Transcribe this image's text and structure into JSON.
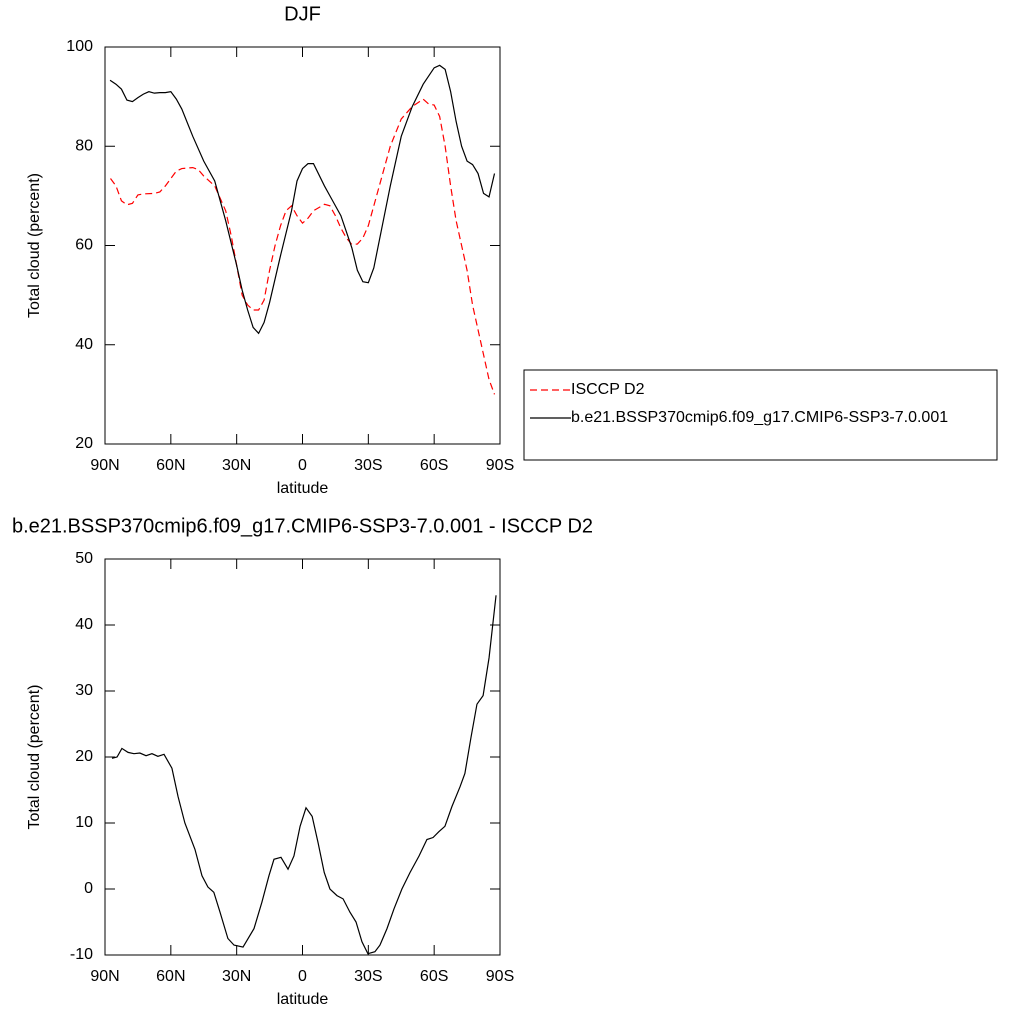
{
  "chart_data": [
    {
      "type": "line",
      "title": "DJF",
      "xlabel": "latitude",
      "ylabel": "Total cloud (percent)",
      "xlim": [
        90,
        -90
      ],
      "xticks": [
        {
          "value": 90,
          "label": "90N"
        },
        {
          "value": 60,
          "label": "60N"
        },
        {
          "value": 30,
          "label": "30N"
        },
        0,
        {
          "value": -30,
          "label": "30S"
        },
        {
          "value": -60,
          "label": "60S"
        },
        {
          "value": -90,
          "label": "90S"
        }
      ],
      "ylim": [
        20,
        100
      ],
      "yticks": [
        20,
        40,
        60,
        80,
        100
      ],
      "legend": "right",
      "series": [
        {
          "name": "ISCCP D2",
          "color": "#ff0000",
          "dash": "dashed",
          "x": [
            87.5,
            85,
            82.5,
            80,
            77.5,
            75,
            72.5,
            67.5,
            65,
            62.5,
            60,
            57.5,
            55,
            50,
            47.5,
            45,
            40,
            35,
            32.5,
            30,
            27.5,
            25,
            22.5,
            20,
            17.5,
            15,
            12.5,
            10,
            7.5,
            5,
            2.5,
            0,
            -2.5,
            -5,
            -10,
            -12.5,
            -15,
            -17.5,
            -20,
            -22.5,
            -25,
            -27.5,
            -30,
            -35,
            -40,
            -45,
            -50,
            -55,
            -57.5,
            -60,
            -62.5,
            -65,
            -67.5,
            -70,
            -72.5,
            -75,
            -77.5,
            -80,
            -82.5,
            -85,
            -87.5
          ],
          "values": [
            73.5,
            72,
            69,
            68.2,
            68.5,
            70.2,
            70.4,
            70.5,
            70.8,
            72,
            73.5,
            75,
            75.5,
            75.7,
            75.3,
            74,
            72,
            67,
            62,
            56,
            50,
            48,
            47,
            47,
            49,
            55,
            60,
            64,
            67,
            68,
            66,
            64.5,
            65.5,
            67,
            68.3,
            68,
            66,
            63.5,
            61.5,
            60.2,
            60.3,
            61.5,
            64,
            72,
            80,
            85.5,
            88,
            89.5,
            88.5,
            88.3,
            86,
            80,
            72,
            65,
            60,
            55,
            48,
            43,
            38,
            33,
            30
          ]
        },
        {
          "name": "b.e21.BSSP370cmip6.f09_g17.CMIP6-SSP3-7.0.001",
          "color": "#000000",
          "dash": "solid",
          "x": [
            87.7,
            85,
            82.5,
            80,
            77.5,
            75,
            72.5,
            70,
            67.5,
            65,
            62.5,
            60,
            57.5,
            55,
            50,
            45,
            40,
            35,
            30,
            27.5,
            25,
            22.5,
            20,
            17.5,
            15,
            10,
            5,
            2.5,
            0,
            -2.5,
            -5,
            -10,
            -12.5,
            -17.5,
            -22.5,
            -25,
            -27.5,
            -30,
            -32.5,
            -35,
            -40,
            -45,
            -50,
            -55,
            -60,
            -62.5,
            -65,
            -67.5,
            -70,
            -72.5,
            -75,
            -77.5,
            -80,
            -82.5,
            -85,
            -87.5
          ],
          "values": [
            93.3,
            92.5,
            91.5,
            89.3,
            89,
            89.8,
            90.5,
            91,
            90.7,
            90.8,
            90.8,
            91,
            89.5,
            87.5,
            82,
            77,
            73,
            65,
            56,
            51,
            47,
            43.5,
            42.3,
            44.5,
            48.5,
            58,
            67,
            73,
            75.5,
            76.5,
            76.5,
            72,
            70,
            66,
            59.5,
            55,
            52.7,
            52.5,
            55.5,
            61,
            72,
            82,
            88,
            92.5,
            95.8,
            96.3,
            95.5,
            91,
            85,
            80,
            77,
            76.3,
            74.5,
            70.5,
            69.8,
            74.5
          ]
        }
      ]
    },
    {
      "type": "line",
      "title": "b.e21.BSSP370cmip6.f09_g17.CMIP6-SSP3-7.0.001 - ISCCP D2",
      "xlabel": "latitude",
      "ylabel": "Total cloud (percent)",
      "xlim": [
        90,
        -90
      ],
      "xticks": [
        {
          "value": 90,
          "label": "90N"
        },
        {
          "value": 60,
          "label": "60N"
        },
        {
          "value": 30,
          "label": "30N"
        },
        0,
        {
          "value": -30,
          "label": "30S"
        },
        {
          "value": -60,
          "label": "60S"
        },
        {
          "value": -90,
          "label": "90S"
        }
      ],
      "ylim": [
        -10,
        50
      ],
      "yticks": [
        -10,
        0,
        10,
        20,
        30,
        40,
        50
      ],
      "series": [
        {
          "color": "#000000",
          "dash": "solid",
          "x": [
            86.8,
            84.5,
            82.3,
            79.5,
            76.8,
            74.1,
            71.3,
            68.6,
            65.9,
            63.1,
            59.5,
            56.7,
            53.6,
            49,
            45.8,
            43.1,
            40.4,
            37.6,
            34,
            31.2,
            27.1,
            22.1,
            18.5,
            15.3,
            13,
            9.8,
            6.6,
            3.9,
            1.1,
            -1.6,
            -4.4,
            -7.1,
            -9.9,
            -12.5,
            -15.7,
            -18.5,
            -21.6,
            -24.4,
            -27.1,
            -29.8,
            -33,
            -35.3,
            -38.5,
            -41.7,
            -45.3,
            -49,
            -53.1,
            -56.7,
            -59.5,
            -62.2,
            -64.9,
            -68.1,
            -71.8,
            -74,
            -76.8,
            -79.5,
            -82.3,
            -85,
            -88.2
          ],
          "values": [
            19.8,
            20,
            21.3,
            20.7,
            20.5,
            20.6,
            20.2,
            20.5,
            20.1,
            20.4,
            18.3,
            14,
            10,
            6,
            2,
            0.3,
            -0.5,
            -3.5,
            -7.5,
            -8.5,
            -8.8,
            -6,
            -2,
            2,
            4.5,
            4.8,
            3,
            5,
            9.5,
            12.3,
            11,
            7,
            2.5,
            0,
            -1,
            -1.5,
            -3.5,
            -5,
            -8,
            -9.8,
            -9.5,
            -8.5,
            -6,
            -3,
            0,
            2.5,
            5,
            7.5,
            7.8,
            8.7,
            9.5,
            12.5,
            15.5,
            17.5,
            23,
            28,
            29.3,
            35,
            44.5
          ]
        }
      ]
    }
  ]
}
